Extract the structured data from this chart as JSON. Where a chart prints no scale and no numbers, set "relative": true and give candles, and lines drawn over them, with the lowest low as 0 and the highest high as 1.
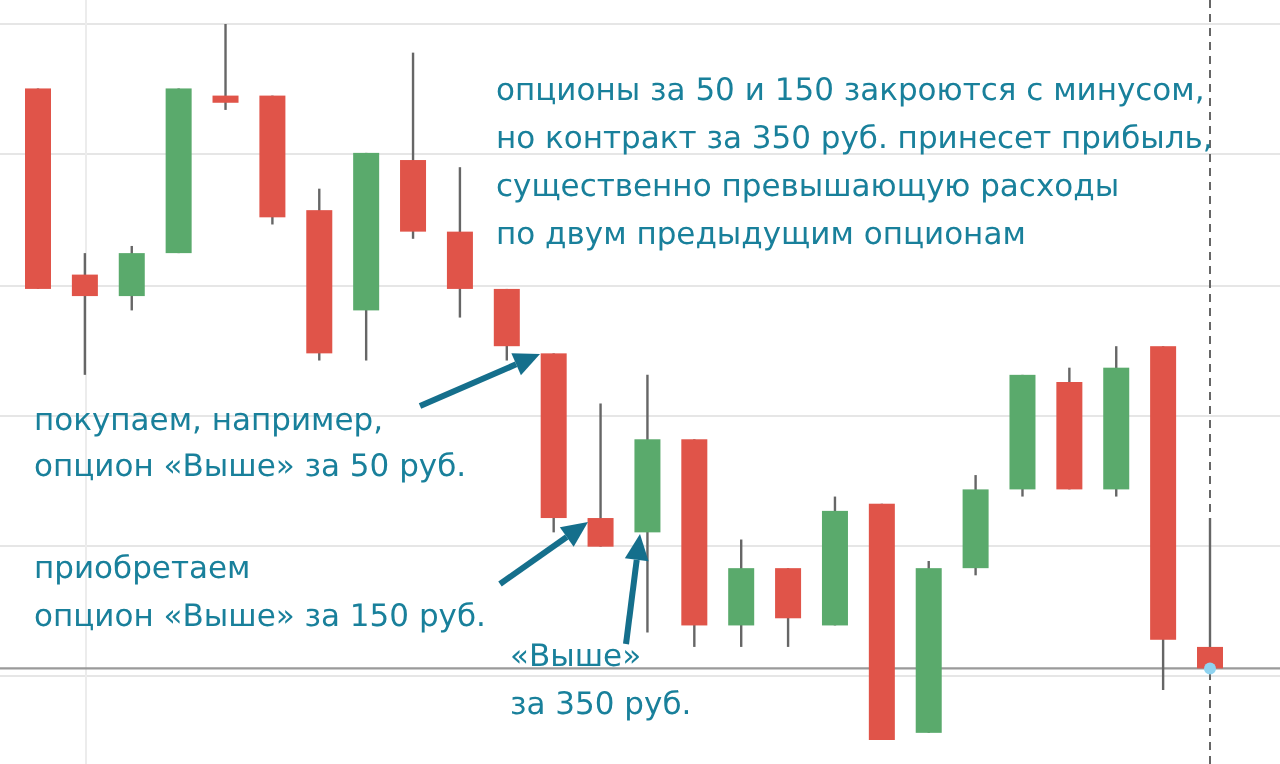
{
  "chart_data": {
    "type": "candlestick",
    "relative": true,
    "grid": true,
    "categories": [
      null,
      null,
      null,
      null,
      null,
      null,
      null,
      null,
      null,
      null,
      null,
      null,
      null,
      null,
      null,
      null,
      null,
      null,
      null,
      null,
      null,
      null,
      null,
      null,
      null,
      null
    ],
    "ohlc": [
      [
        0.91,
        0.91,
        0.63,
        0.63
      ],
      [
        0.65,
        0.68,
        0.51,
        0.62
      ],
      [
        0.62,
        0.69,
        0.6,
        0.68
      ],
      [
        0.68,
        0.91,
        0.68,
        0.91
      ],
      [
        0.9,
        1.0,
        0.88,
        0.89
      ],
      [
        0.9,
        0.9,
        0.72,
        0.73
      ],
      [
        0.74,
        0.77,
        0.53,
        0.54
      ],
      [
        0.6,
        0.82,
        0.53,
        0.82
      ],
      [
        0.81,
        0.96,
        0.7,
        0.71
      ],
      [
        0.71,
        0.8,
        0.59,
        0.63
      ],
      [
        0.63,
        0.63,
        0.53,
        0.55
      ],
      [
        0.54,
        0.54,
        0.29,
        0.31
      ],
      [
        0.31,
        0.47,
        0.27,
        0.27
      ],
      [
        0.29,
        0.51,
        0.15,
        0.42
      ],
      [
        0.42,
        0.42,
        0.13,
        0.16
      ],
      [
        0.16,
        0.28,
        0.13,
        0.24
      ],
      [
        0.24,
        0.24,
        0.13,
        0.17
      ],
      [
        0.16,
        0.34,
        0.16,
        0.32
      ],
      [
        0.33,
        0.33,
        0.0,
        0.0
      ],
      [
        0.01,
        0.25,
        0.01,
        0.24
      ],
      [
        0.24,
        0.37,
        0.23,
        0.35
      ],
      [
        0.35,
        0.51,
        0.34,
        0.51
      ],
      [
        0.5,
        0.52,
        0.35,
        0.35
      ],
      [
        0.35,
        0.55,
        0.34,
        0.52
      ],
      [
        0.55,
        0.55,
        0.07,
        0.14
      ],
      [
        0.13,
        0.31,
        0.1,
        0.1
      ]
    ],
    "colors": [
      "#e05449",
      "#e05449",
      "#5aaa6c",
      "#5aaa6c",
      "#e05449",
      "#e05449",
      "#e05449",
      "#5aaa6c",
      "#e05449",
      "#e05449",
      "#e05449",
      "#e05449",
      "#e05449",
      "#5aaa6c",
      "#e05449",
      "#5aaa6c",
      "#e05449",
      "#5aaa6c",
      "#e05449",
      "#5aaa6c",
      "#5aaa6c",
      "#5aaa6c",
      "#e05449",
      "#5aaa6c",
      "#e05449",
      "#e05449"
    ],
    "ref_lines": [
      {
        "axis": "y",
        "value": 0.1,
        "color": "#9a9a9a"
      }
    ],
    "annotations": [
      "опционы за 50 и 150 закроются с минусом,\nно контракт за 350 руб. принесет прибыль,\nсущественно превышающую расходы\nпо двум предыдущим опционам",
      "покупаем, например,\nопцион «Выше» за 50 руб.",
      "приобретаем\nопцион «Выше» за 150 руб.",
      "«Выше»\nза 350 руб."
    ]
  }
}
